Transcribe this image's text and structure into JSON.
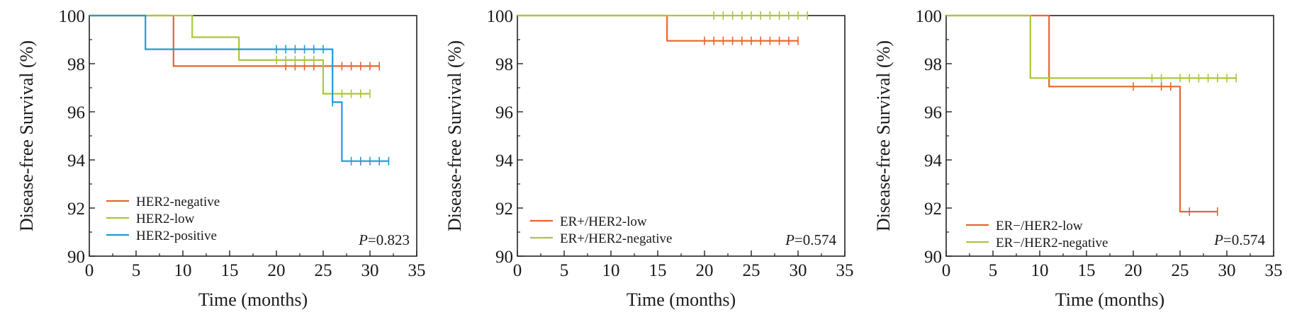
{
  "chart_data": [
    {
      "type": "line",
      "step": true,
      "xlabel": "Time (months)",
      "ylabel": "Disease-free Survival (%)",
      "xlim": [
        0,
        35
      ],
      "ylim": [
        90,
        100
      ],
      "x_ticks": [
        "0",
        "5",
        "10",
        "15",
        "20",
        "25",
        "30",
        "35"
      ],
      "y_ticks": [
        "90",
        "92",
        "94",
        "96",
        "98",
        "100"
      ],
      "grid": false,
      "legend_position": "bottom-left",
      "p_value": "0.823",
      "series": [
        {
          "name": "HER2-negative",
          "color": "#e8652c",
          "steps": [
            [
              0,
              100
            ],
            [
              9,
              97.9
            ],
            [
              31,
              97.9
            ]
          ],
          "censored": [
            [
              21,
              97.9
            ],
            [
              22,
              97.9
            ],
            [
              23,
              97.9
            ],
            [
              24,
              97.9
            ],
            [
              26,
              97.9
            ],
            [
              27,
              97.9
            ],
            [
              28,
              97.9
            ],
            [
              29,
              97.9
            ],
            [
              30,
              97.9
            ],
            [
              31,
              97.9
            ]
          ]
        },
        {
          "name": "HER2-low",
          "color": "#a8c838",
          "steps": [
            [
              0,
              100
            ],
            [
              11,
              99.1
            ],
            [
              16,
              98.15
            ],
            [
              25,
              96.75
            ],
            [
              30,
              96.75
            ]
          ],
          "censored": [
            [
              20,
              98.15
            ],
            [
              21,
              98.15
            ],
            [
              22,
              98.15
            ],
            [
              23,
              98.15
            ],
            [
              24,
              98.15
            ],
            [
              26,
              96.75
            ],
            [
              27,
              96.75
            ],
            [
              28,
              96.75
            ],
            [
              29,
              96.75
            ],
            [
              30,
              96.75
            ]
          ]
        },
        {
          "name": "HER2-positive",
          "color": "#1f9bd7",
          "steps": [
            [
              0,
              100
            ],
            [
              6,
              98.6
            ],
            [
              26,
              96.4
            ],
            [
              27,
              93.95
            ],
            [
              32,
              93.95
            ]
          ],
          "censored": [
            [
              20,
              98.6
            ],
            [
              21,
              98.6
            ],
            [
              22,
              98.6
            ],
            [
              23,
              98.6
            ],
            [
              24,
              98.6
            ],
            [
              25,
              98.6
            ],
            [
              26,
              96.4
            ],
            [
              28,
              93.95
            ],
            [
              29,
              93.95
            ],
            [
              30,
              93.95
            ],
            [
              31,
              93.95
            ],
            [
              32,
              93.95
            ]
          ]
        }
      ]
    },
    {
      "type": "line",
      "step": true,
      "xlabel": "Time (months)",
      "ylabel": "Disease-free Survival (%)",
      "xlim": [
        0,
        35
      ],
      "ylim": [
        90,
        100
      ],
      "x_ticks": [
        "0",
        "5",
        "10",
        "15",
        "20",
        "25",
        "30",
        "35"
      ],
      "y_ticks": [
        "90",
        "92",
        "94",
        "96",
        "98",
        "100"
      ],
      "grid": false,
      "legend_position": "bottom-left",
      "p_value": "0.574",
      "series": [
        {
          "name": "ER+/HER2-low",
          "color": "#e8652c",
          "steps": [
            [
              0,
              100
            ],
            [
              16,
              98.95
            ],
            [
              30,
              98.95
            ]
          ],
          "censored": [
            [
              20,
              98.95
            ],
            [
              21,
              98.95
            ],
            [
              22,
              98.95
            ],
            [
              23,
              98.95
            ],
            [
              24,
              98.95
            ],
            [
              25,
              98.95
            ],
            [
              26,
              98.95
            ],
            [
              27,
              98.95
            ],
            [
              28,
              98.95
            ],
            [
              29,
              98.95
            ],
            [
              30,
              98.95
            ]
          ]
        },
        {
          "name": "ER+/HER2-negative",
          "color": "#a8c838",
          "steps": [
            [
              0,
              100
            ],
            [
              31,
              100
            ]
          ],
          "censored": [
            [
              21,
              100
            ],
            [
              22,
              100
            ],
            [
              23,
              100
            ],
            [
              24,
              100
            ],
            [
              25,
              100
            ],
            [
              26,
              100
            ],
            [
              27,
              100
            ],
            [
              28,
              100
            ],
            [
              29,
              100
            ],
            [
              30,
              100
            ],
            [
              31,
              100
            ]
          ]
        }
      ]
    },
    {
      "type": "line",
      "step": true,
      "xlabel": "Time (months)",
      "ylabel": "Disease-free Survival (%)",
      "xlim": [
        0,
        35
      ],
      "ylim": [
        90,
        100
      ],
      "x_ticks": [
        "0",
        "5",
        "10",
        "15",
        "20",
        "25",
        "30",
        "35"
      ],
      "y_ticks": [
        "90",
        "92",
        "94",
        "96",
        "98",
        "100"
      ],
      "grid": false,
      "legend_position": "bottom-left",
      "p_value": "0.574",
      "series": [
        {
          "name": "ER−/HER2-low",
          "color": "#e8652c",
          "steps": [
            [
              0,
              100
            ],
            [
              11,
              97.05
            ],
            [
              25,
              91.85
            ],
            [
              29,
              91.85
            ]
          ],
          "censored": [
            [
              20,
              97.05
            ],
            [
              23,
              97.05
            ],
            [
              24,
              97.05
            ],
            [
              26,
              91.85
            ],
            [
              29,
              91.85
            ]
          ]
        },
        {
          "name": "ER−/HER2-negative",
          "color": "#a8c838",
          "steps": [
            [
              0,
              100
            ],
            [
              9,
              97.4
            ],
            [
              31,
              97.4
            ]
          ],
          "censored": [
            [
              22,
              97.4
            ],
            [
              23,
              97.4
            ],
            [
              25,
              97.4
            ],
            [
              26,
              97.4
            ],
            [
              27,
              97.4
            ],
            [
              28,
              97.4
            ],
            [
              29,
              97.4
            ],
            [
              30,
              97.4
            ],
            [
              31,
              97.4
            ]
          ]
        }
      ]
    }
  ]
}
